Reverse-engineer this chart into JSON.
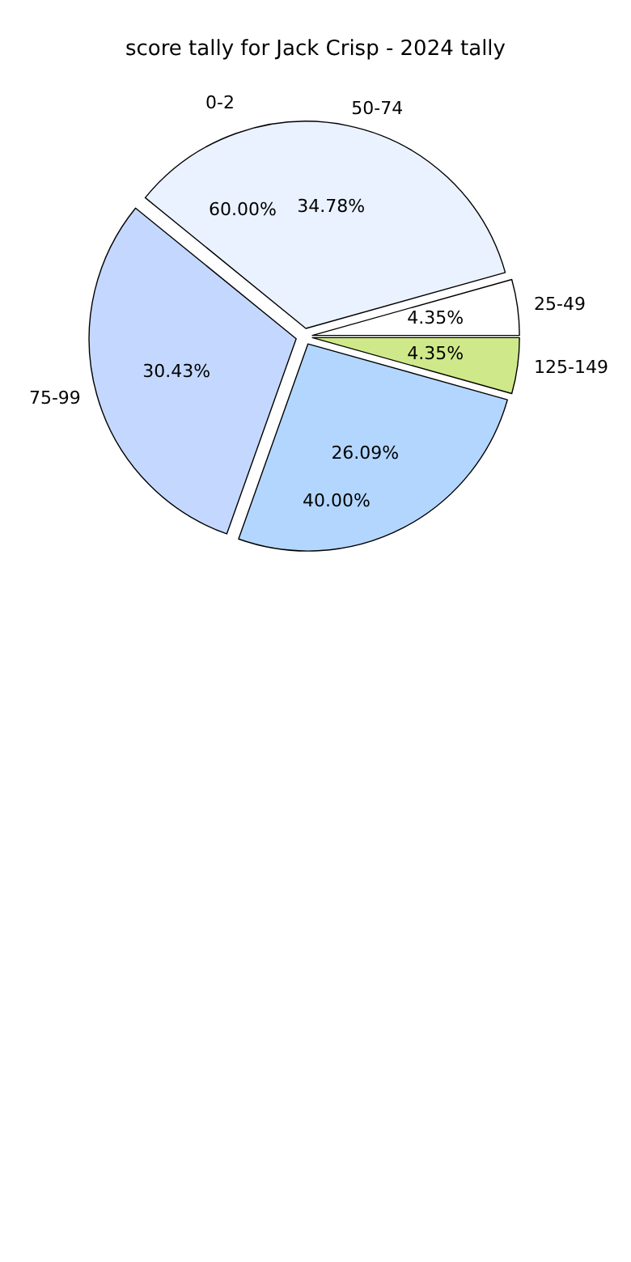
{
  "chart_data": {
    "type": "pie",
    "title": "score tally for Jack Crisp - 2024 tally",
    "categories": [
      "25-49",
      "50-74",
      "75-99",
      null,
      "125-149"
    ],
    "values": [
      4.35,
      34.78,
      30.43,
      26.09,
      4.35
    ],
    "value_labels": [
      "4.35%",
      "34.78%",
      "30.43%",
      "26.09%",
      "4.35%"
    ],
    "colors": [
      "#ffffff",
      "#eaf2ff",
      "#c4d8ff",
      "#b3d6ff",
      "#cfe98a"
    ],
    "annotations": [
      "0-2",
      "60.00%",
      "40.00%"
    ]
  }
}
